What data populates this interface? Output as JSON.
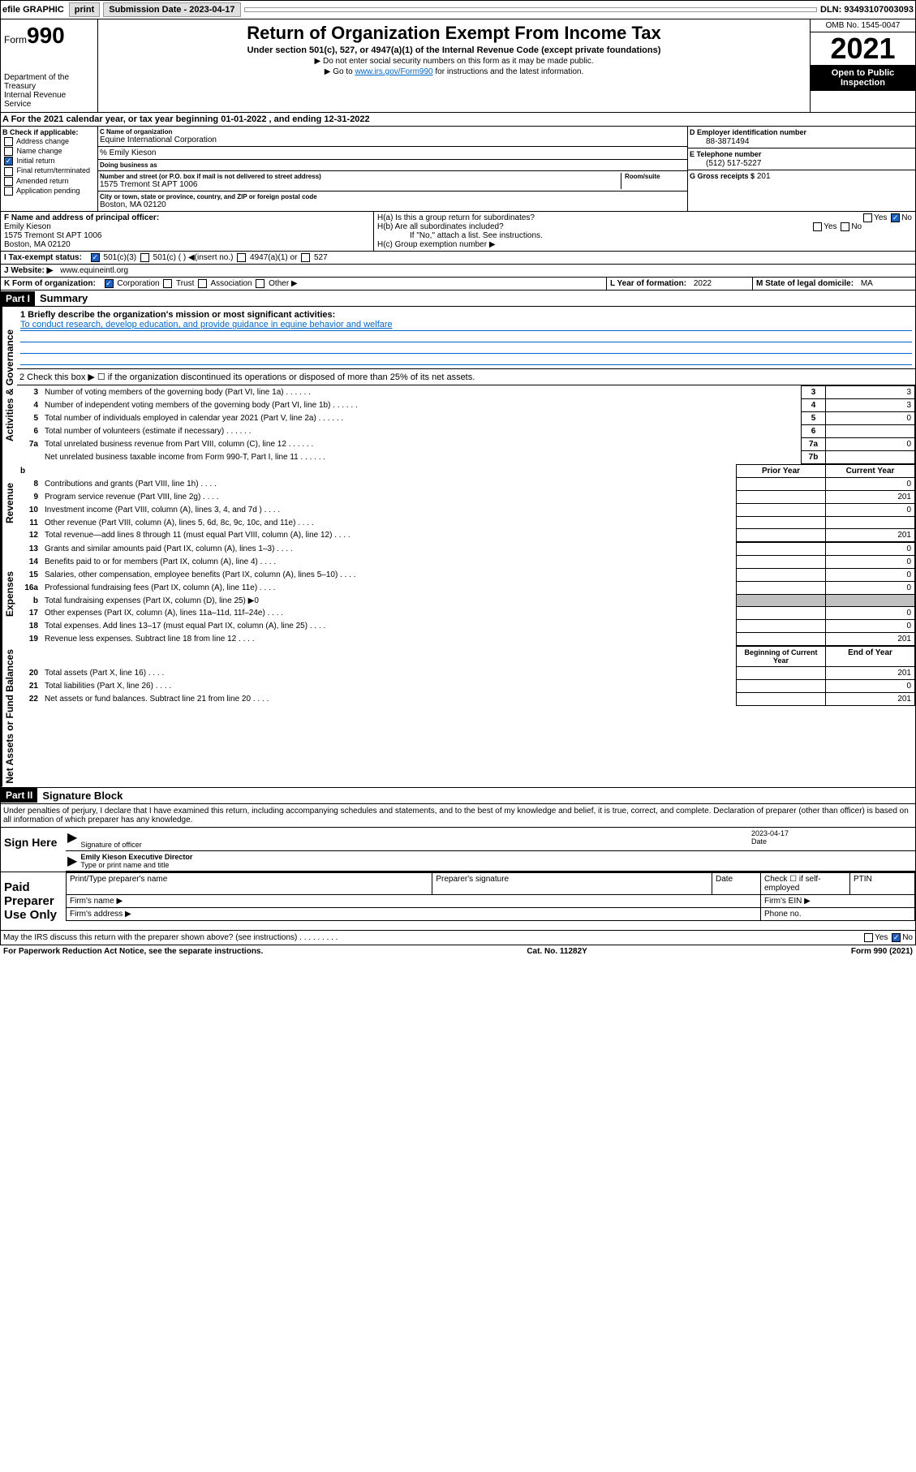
{
  "top_bar": {
    "efile_label": "efile GRAPHIC",
    "print_btn": "print",
    "submission_label": "Submission Date - 2023-04-17",
    "dln": "DLN: 93493107003093"
  },
  "header": {
    "form_label": "Form",
    "form_number": "990",
    "title": "Return of Organization Exempt From Income Tax",
    "subtitle": "Under section 501(c), 527, or 4947(a)(1) of the Internal Revenue Code (except private foundations)",
    "note1": "▶ Do not enter social security numbers on this form as it may be made public.",
    "note2": "▶ Go to www.irs.gov/Form990 for instructions and the latest information.",
    "dept": "Department of the Treasury\nInternal Revenue Service",
    "omb": "OMB No. 1545-0047",
    "year": "2021",
    "open_public": "Open to Public Inspection"
  },
  "period": {
    "label_a": "A For the 2021 calendar year, or tax year beginning",
    "begin": "01-01-2022",
    "mid": ", and ending",
    "end": "12-31-2022"
  },
  "section_b": {
    "label": "B Check if applicable:",
    "opts": [
      "Address change",
      "Name change",
      "Initial return",
      "Final return/terminated",
      "Amended return",
      "Application pending"
    ],
    "checked_idx": 2
  },
  "section_c": {
    "name_label": "C Name of organization",
    "org_name": "Equine International Corporation",
    "care_of": "% Emily Kieson",
    "dba_label": "Doing business as",
    "street_label": "Number and street (or P.O. box if mail is not delivered to street address)",
    "room_label": "Room/suite",
    "street": "1575 Tremont St APT 1006",
    "city_label": "City or town, state or province, country, and ZIP or foreign postal code",
    "city": "Boston, MA  02120"
  },
  "section_d": {
    "label": "D Employer identification number",
    "value": "88-3871494"
  },
  "section_e": {
    "label": "E Telephone number",
    "value": "(512) 517-5227"
  },
  "section_g": {
    "label": "G Gross receipts $",
    "value": "201"
  },
  "section_f": {
    "label": "F Name and address of principal officer:",
    "name": "Emily Kieson",
    "addr1": "1575 Tremont St APT 1006",
    "addr2": "Boston, MA  02120"
  },
  "section_h": {
    "ha": "H(a)  Is this a group return for subordinates?",
    "ha_ans": "No",
    "hb": "H(b)  Are all subordinates included?",
    "hb_note": "If \"No,\" attach a list. See instructions.",
    "hc": "H(c)  Group exemption number ▶"
  },
  "section_i": {
    "label": "I   Tax-exempt status:",
    "opts": [
      "501(c)(3)",
      "501(c) ( ) ◀(insert no.)",
      "4947(a)(1) or",
      "527"
    ]
  },
  "section_j": {
    "label": "J   Website: ▶",
    "value": "www.equineintl.org"
  },
  "section_k": {
    "label": "K Form of organization:",
    "opts": [
      "Corporation",
      "Trust",
      "Association",
      "Other ▶"
    ]
  },
  "section_l": {
    "label": "L Year of formation:",
    "value": "2022"
  },
  "section_m": {
    "label": "M State of legal domicile:",
    "value": "MA"
  },
  "part1": {
    "header": "Part I",
    "title": "Summary",
    "line1_label": "1  Briefly describe the organization's mission or most significant activities:",
    "mission": "To conduct research, develop education, and provide guidance in equine behavior and welfare",
    "line2": "2   Check this box ▶ ☐  if the organization discontinued its operations or disposed of more than 25% of its net assets.",
    "labels": {
      "activities": "Activities & Governance",
      "revenue": "Revenue",
      "expenses": "Expenses",
      "netassets": "Net Assets or Fund Balances"
    },
    "rows_governance": [
      {
        "n": "3",
        "t": "Number of voting members of the governing body (Part VI, line 1a)",
        "box": "3",
        "v": "3"
      },
      {
        "n": "4",
        "t": "Number of independent voting members of the governing body (Part VI, line 1b)",
        "box": "4",
        "v": "3"
      },
      {
        "n": "5",
        "t": "Total number of individuals employed in calendar year 2021 (Part V, line 2a)",
        "box": "5",
        "v": "0"
      },
      {
        "n": "6",
        "t": "Total number of volunteers (estimate if necessary)",
        "box": "6",
        "v": ""
      },
      {
        "n": "7a",
        "t": "Total unrelated business revenue from Part VIII, column (C), line 12",
        "box": "7a",
        "v": "0"
      },
      {
        "n": "",
        "t": "Net unrelated business taxable income from Form 990-T, Part I, line 11",
        "box": "7b",
        "v": ""
      }
    ],
    "col_headers": {
      "prior": "Prior Year",
      "current": "Current Year"
    },
    "rows_revenue": [
      {
        "n": "8",
        "t": "Contributions and grants (Part VIII, line 1h)",
        "pv": "",
        "cv": "0"
      },
      {
        "n": "9",
        "t": "Program service revenue (Part VIII, line 2g)",
        "pv": "",
        "cv": "201"
      },
      {
        "n": "10",
        "t": "Investment income (Part VIII, column (A), lines 3, 4, and 7d )",
        "pv": "",
        "cv": "0"
      },
      {
        "n": "11",
        "t": "Other revenue (Part VIII, column (A), lines 5, 6d, 8c, 9c, 10c, and 11e)",
        "pv": "",
        "cv": ""
      },
      {
        "n": "12",
        "t": "Total revenue—add lines 8 through 11 (must equal Part VIII, column (A), line 12)",
        "pv": "",
        "cv": "201"
      }
    ],
    "rows_expenses": [
      {
        "n": "13",
        "t": "Grants and similar amounts paid (Part IX, column (A), lines 1–3)",
        "pv": "",
        "cv": "0"
      },
      {
        "n": "14",
        "t": "Benefits paid to or for members (Part IX, column (A), line 4)",
        "pv": "",
        "cv": "0"
      },
      {
        "n": "15",
        "t": "Salaries, other compensation, employee benefits (Part IX, column (A), lines 5–10)",
        "pv": "",
        "cv": "0"
      },
      {
        "n": "16a",
        "t": "Professional fundraising fees (Part IX, column (A), line 11e)",
        "pv": "",
        "cv": "0"
      },
      {
        "n": "b",
        "t": "Total fundraising expenses (Part IX, column (D), line 25) ▶0",
        "shaded": true
      },
      {
        "n": "17",
        "t": "Other expenses (Part IX, column (A), lines 11a–11d, 11f–24e)",
        "pv": "",
        "cv": "0"
      },
      {
        "n": "18",
        "t": "Total expenses. Add lines 13–17 (must equal Part IX, column (A), line 25)",
        "pv": "",
        "cv": "0"
      },
      {
        "n": "19",
        "t": "Revenue less expenses. Subtract line 18 from line 12",
        "pv": "",
        "cv": "201"
      }
    ],
    "col_headers2": {
      "begin": "Beginning of Current Year",
      "end": "End of Year"
    },
    "rows_netassets": [
      {
        "n": "20",
        "t": "Total assets (Part X, line 16)",
        "bv": "",
        "ev": "201"
      },
      {
        "n": "21",
        "t": "Total liabilities (Part X, line 26)",
        "bv": "",
        "ev": "0"
      },
      {
        "n": "22",
        "t": "Net assets or fund balances. Subtract line 21 from line 20",
        "bv": "",
        "ev": "201"
      }
    ]
  },
  "part2": {
    "header": "Part II",
    "title": "Signature Block",
    "declaration": "Under penalties of perjury, I declare that I have examined this return, including accompanying schedules and statements, and to the best of my knowledge and belief, it is true, correct, and complete. Declaration of preparer (other than officer) is based on all information of which preparer has any knowledge.",
    "sign_here": "Sign Here",
    "sig_officer": "Signature of officer",
    "date_label": "Date",
    "date_val": "2023-04-17",
    "name_title": "Emily Kieson Executive Director",
    "name_title_label": "Type or print name and title",
    "paid_label": "Paid Preparer Use Only",
    "prep_cols": [
      "Print/Type preparer's name",
      "Preparer's signature",
      "Date"
    ],
    "check_self": "Check ☐ if self-employed",
    "ptin": "PTIN",
    "firm_name": "Firm's name  ▶",
    "firm_ein": "Firm's EIN ▶",
    "firm_addr": "Firm's address ▶",
    "phone": "Phone no.",
    "discuss": "May the IRS discuss this return with the preparer shown above? (see instructions)",
    "discuss_ans": "No"
  },
  "footer": {
    "paperwork": "For Paperwork Reduction Act Notice, see the separate instructions.",
    "cat": "Cat. No. 11282Y",
    "form": "Form 990 (2021)"
  },
  "colors": {
    "link": "#0066cc",
    "check_blue": "#2060c0",
    "shaded": "#c0c0c0"
  }
}
